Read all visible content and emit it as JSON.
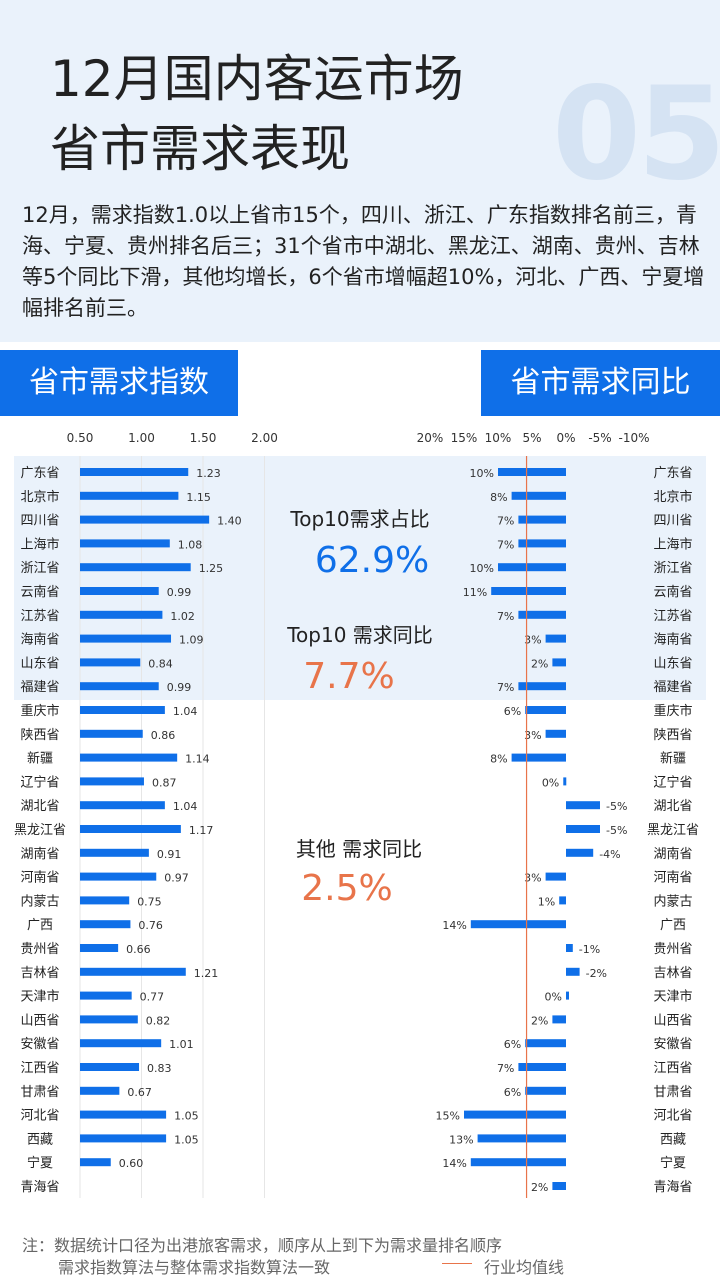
{
  "header": {
    "title_line1": "12月国内客运市场",
    "title_line2": "省市需求表现",
    "section_number": "05",
    "summary": "12月，需求指数1.0以上省市15个，四川、浙江、广东指数排名前三，青海、宁夏、贵州排名后三；31个省市中湖北、黑龙江、湖南、贵州、吉林等5个同比下滑，其他均增长，6个省市增幅超10%，河北、广西、宁夏增幅排名前三。"
  },
  "tags": {
    "left": "省市需求指数",
    "right": "省市需求同比"
  },
  "callouts": {
    "top10_share_label": "Top10需求占比",
    "top10_share_value": "62.9%",
    "top10_yoy_label": "Top10 需求同比",
    "top10_yoy_value": "7.7%",
    "other_yoy_label": "其他 需求同比",
    "other_yoy_value": "2.5%"
  },
  "colors": {
    "bar": "#0f6fe8",
    "highlight_band": "#eaf2fb",
    "avg_line": "#e8744a",
    "share_value": "#0f6fe8",
    "yoy_value": "#e8744a"
  },
  "chart_data": [
    {
      "type": "bar",
      "orientation": "horizontal",
      "title": "省市需求指数",
      "x_ticks": [
        "0.50",
        "1.00",
        "1.50",
        "2.00"
      ],
      "categories": [
        "广东省",
        "北京市",
        "四川省",
        "上海市",
        "浙江省",
        "云南省",
        "江苏省",
        "海南省",
        "山东省",
        "福建省",
        "重庆市",
        "陕西省",
        "新疆",
        "辽宁省",
        "湖北省",
        "黑龙江省",
        "湖南省",
        "河南省",
        "内蒙古",
        "广西",
        "贵州省",
        "吉林省",
        "天津市",
        "山西省",
        "安徽省",
        "江西省",
        "甘肃省",
        "河北省",
        "西藏",
        "宁夏",
        "青海省"
      ],
      "values": [
        1.23,
        1.15,
        1.4,
        1.08,
        1.25,
        0.99,
        1.02,
        1.09,
        0.84,
        0.99,
        1.04,
        0.86,
        1.14,
        0.87,
        1.04,
        1.17,
        0.91,
        0.97,
        0.75,
        0.76,
        0.66,
        1.21,
        0.77,
        0.82,
        1.01,
        0.83,
        0.67,
        1.05,
        1.05,
        0.6,
        null
      ],
      "value_labels": [
        "1.23",
        "1.15",
        "1.40",
        "1.08",
        "1.25",
        "0.99",
        "1.02",
        "1.09",
        "0.84",
        "0.99",
        "1.04",
        "0.86",
        "1.14",
        "0.87",
        "1.04",
        "1.17",
        "0.91",
        "0.97",
        "0.75",
        "0.76",
        "0.66",
        "1.21",
        "0.77",
        "0.82",
        "1.01",
        "0.83",
        "0.67",
        "1.05",
        "1.05",
        "0.60",
        ""
      ],
      "xlim": [
        0.5,
        2.0
      ],
      "grid": true
    },
    {
      "type": "bar",
      "orientation": "horizontal",
      "title": "省市需求同比",
      "x_ticks": [
        "20%",
        "15%",
        "10%",
        "5%",
        "0%",
        "-5%",
        "-10%"
      ],
      "x_reversed": true,
      "categories": [
        "广东省",
        "北京市",
        "四川省",
        "上海市",
        "浙江省",
        "云南省",
        "江苏省",
        "海南省",
        "山东省",
        "福建省",
        "重庆市",
        "陕西省",
        "新疆",
        "辽宁省",
        "湖北省",
        "黑龙江省",
        "湖南省",
        "河南省",
        "内蒙古",
        "广西",
        "贵州省",
        "吉林省",
        "天津市",
        "山西省",
        "安徽省",
        "江西省",
        "甘肃省",
        "河北省",
        "西藏",
        "宁夏",
        "青海省"
      ],
      "values": [
        10,
        8,
        7,
        7,
        10,
        11,
        7,
        3,
        2,
        7,
        6,
        3,
        8,
        0.4,
        -5,
        -5,
        -4,
        3,
        1,
        14,
        -1,
        -2,
        0,
        2,
        6,
        7,
        6,
        15,
        13,
        14,
        2
      ],
      "value_labels": [
        "10%",
        "8%",
        "7%",
        "7%",
        "10%",
        "11%",
        "7%",
        "3%",
        "2%",
        "7%",
        "6%",
        "3%",
        "8%",
        "0%",
        "-5%",
        "-5%",
        "-4%",
        "3%",
        "1%",
        "14%",
        "-1%",
        "-2%",
        "0%",
        "2%",
        "6%",
        "7%",
        "6%",
        "15%",
        "13%",
        "14%",
        "2%"
      ],
      "xlim": [
        -10,
        20
      ],
      "avg_line": 5.8,
      "avg_line_label": "行业均值线",
      "highlight_top_n": 10
    }
  ],
  "notes": {
    "line1": "注：数据统计口径为出港旅客需求，顺序从上到下为需求量排名顺序",
    "line2": "需求指数算法与整体需求指数算法一致",
    "legend": "行业均值线"
  }
}
